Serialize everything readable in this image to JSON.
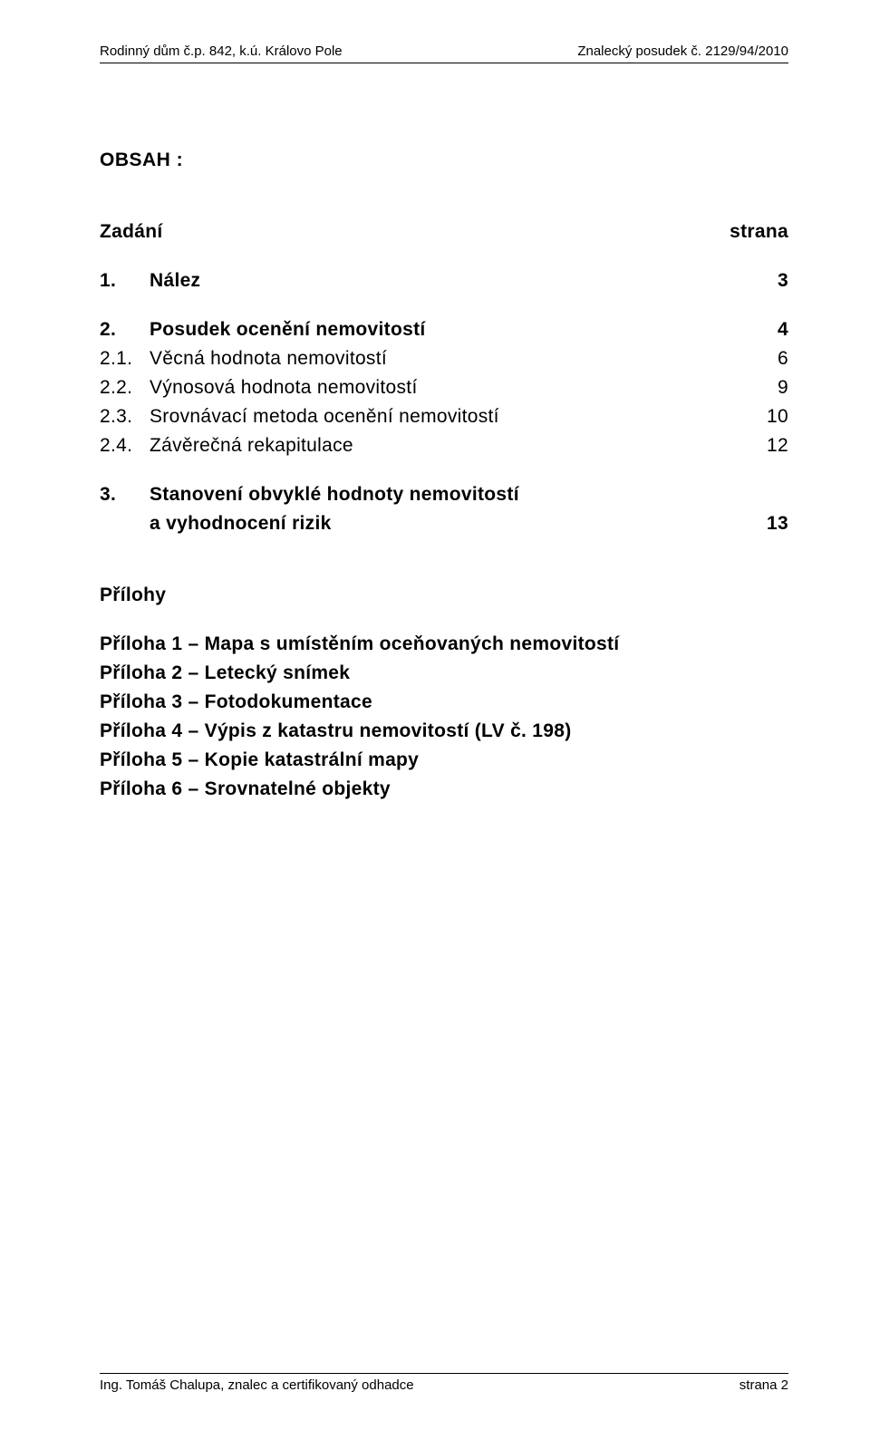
{
  "header": {
    "left": "Rodinný dům č.p. 842, k.ú. Královo Pole",
    "right": "Znalecký posudek č. 2129/94/2010"
  },
  "title": "OBSAH :",
  "toc": {
    "heading_left": "Zadání",
    "heading_right": "strana",
    "items": [
      {
        "num": "1.",
        "label": "Nález",
        "page": "3",
        "bold": true
      },
      {
        "num": "2.",
        "label": "Posudek ocenění nemovitostí",
        "page": "4",
        "bold": true
      },
      {
        "num": "2.1.",
        "label": "Věcná hodnota nemovitostí",
        "page": "6",
        "bold": false
      },
      {
        "num": "2.2.",
        "label": "Výnosová hodnota nemovitostí",
        "page": "9",
        "bold": false
      },
      {
        "num": "2.3.",
        "label": "Srovnávací metoda ocenění nemovitostí",
        "page": "10",
        "bold": false
      },
      {
        "num": "2.4.",
        "label": "Závěrečná rekapitulace",
        "page": "12",
        "bold": false
      }
    ],
    "item3": {
      "num": "3.",
      "line1": "Stanovení obvyklé hodnoty nemovitostí",
      "line2": "a vyhodnocení rizik",
      "page": "13"
    }
  },
  "attachments": {
    "heading": "Přílohy",
    "lines": [
      "Příloha 1 – Mapa s umístěním oceňovaných nemovitostí",
      "Příloha 2 – Letecký snímek",
      "Příloha 3 – Fotodokumentace",
      "Příloha 4 – Výpis z katastru nemovitostí (LV č. 198)",
      "Příloha 5 – Kopie katastrální mapy",
      "Příloha 6 – Srovnatelné objekty"
    ]
  },
  "footer": {
    "left": "Ing. Tomáš Chalupa, znalec a certifikovaný odhadce",
    "right": "strana 2"
  }
}
